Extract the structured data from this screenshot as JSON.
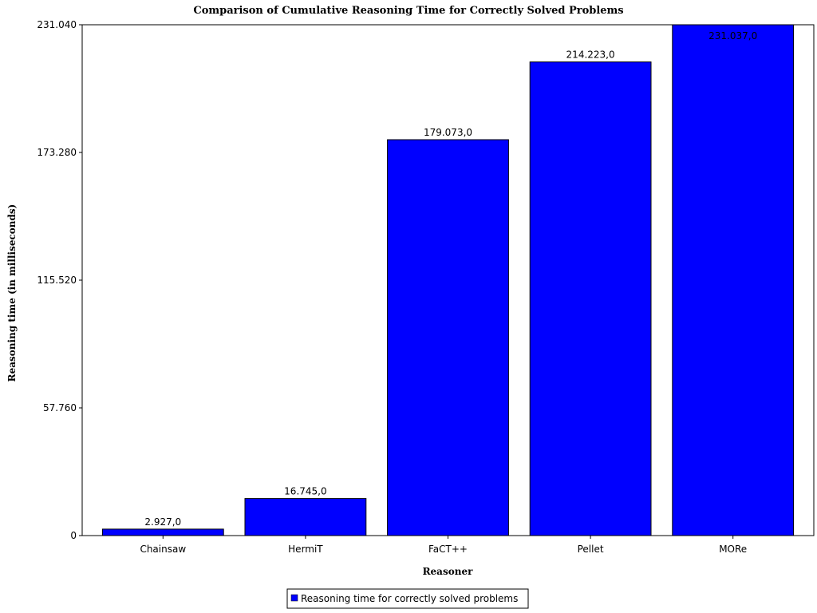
{
  "chart_data": {
    "type": "bar",
    "title": "Comparison of Cumulative Reasoning Time for Correctly Solved Problems",
    "xlabel": "Reasoner",
    "ylabel": "Reasoning time (in milliseconds)",
    "categories": [
      "Chainsaw",
      "HermiT",
      "FaCT++",
      "Pellet",
      "MORe"
    ],
    "series": [
      {
        "name": "Reasoning time for correctly solved problems",
        "values": [
          2927,
          16745,
          179073,
          214223,
          231037
        ],
        "labels": [
          "2.927,0",
          "16.745,0",
          "179.073,0",
          "214.223,0",
          "231.037,0"
        ]
      }
    ],
    "ylim": [
      0,
      231040
    ],
    "yticks": [
      0,
      57760,
      115520,
      173280,
      231040
    ],
    "ytick_labels": [
      "0",
      "57.760",
      "115.520",
      "173.280",
      "231.040"
    ],
    "grid": false,
    "legend_position": "bottom",
    "colors": {
      "bar": "#0000ff",
      "bar_edge": "#000000",
      "axis": "#000000"
    }
  }
}
